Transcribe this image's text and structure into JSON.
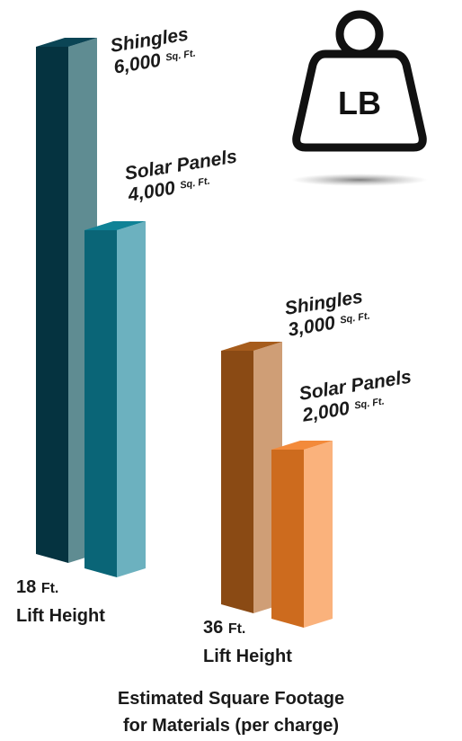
{
  "chart_data": {
    "type": "bar",
    "unit": "Sq. Ft.",
    "groups": [
      {
        "lift_value": "18",
        "lift_unit": "Ft.",
        "lift_label": "Lift Height",
        "bars": [
          {
            "name": "Shingles",
            "value": 6000,
            "value_label": "6,000",
            "front": "#053340",
            "side": "#5f8c92",
            "top": "#0b4555"
          },
          {
            "name": "Solar Panels",
            "value": 4000,
            "value_label": "4,000",
            "front": "#0a6577",
            "side": "#6cb1bf",
            "top": "#0f8296"
          }
        ]
      },
      {
        "lift_value": "36",
        "lift_unit": "Ft.",
        "lift_label": "Lift Height",
        "bars": [
          {
            "name": "Shingles",
            "value": 3000,
            "value_label": "3,000",
            "front": "#8a4a14",
            "side": "#cf9e76",
            "top": "#a65c1c"
          },
          {
            "name": "Solar Panels",
            "value": 2000,
            "value_label": "2,000",
            "front": "#cd6b1e",
            "side": "#fab27c",
            "top": "#f38a3a"
          }
        ]
      }
    ],
    "caption_line1": "Estimated Square Footage",
    "caption_line2": "for Materials (per charge)"
  },
  "icon": {
    "name": "weight-icon",
    "text": "LB"
  }
}
